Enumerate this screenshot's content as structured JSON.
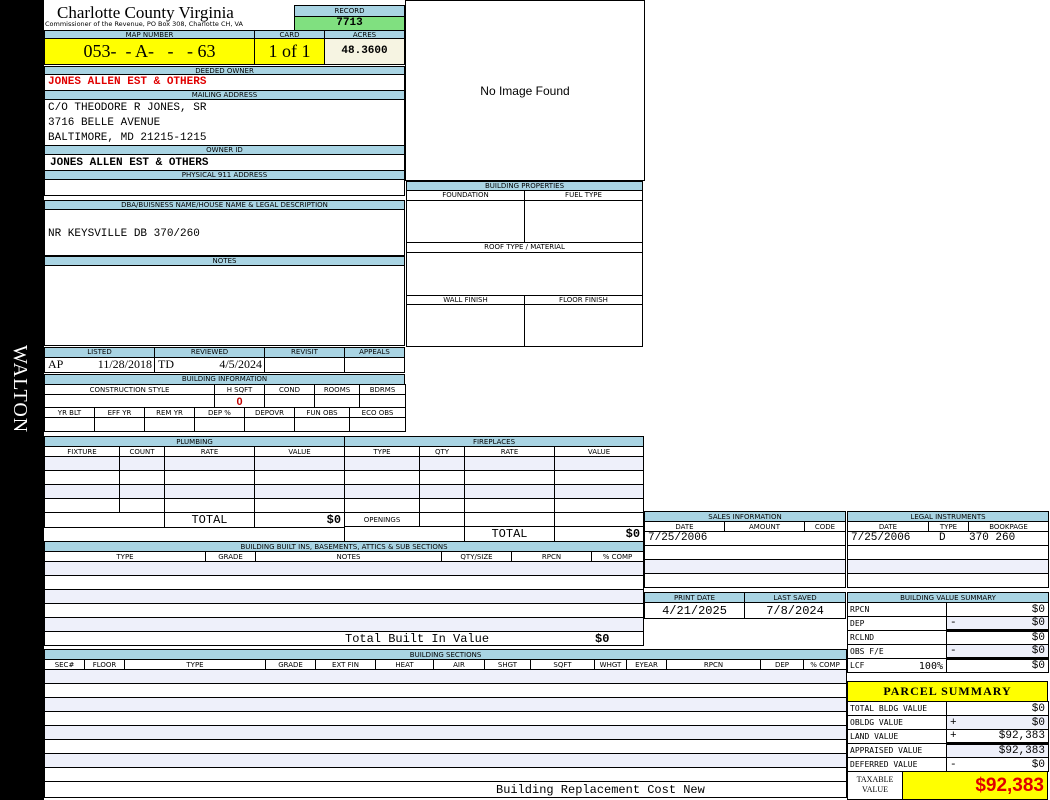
{
  "side_label": "WALTON",
  "header": {
    "title": "Charlotte County Virginia",
    "subtitle": "Commissioner of the Revenue, PO Box 308, Charlotte CH, VA",
    "record_label": "RECORD",
    "record": "7713"
  },
  "parcel": {
    "map_label": "MAP NUMBER",
    "map_number": "053-  - A-   -   - 63",
    "card_label": "CARD",
    "card": "1 of 1",
    "acres_label": "ACRES",
    "acres": "48.3600"
  },
  "owner": {
    "deeded_label": "DEEDED OWNER",
    "deeded": "JONES ALLEN EST & OTHERS",
    "mailing_label": "MAILING ADDRESS",
    "mailing": [
      "C/O THEODORE R JONES, SR",
      "3716 BELLE AVENUE",
      "BALTIMORE, MD 21215-1215"
    ],
    "owner_id_label": "OWNER ID",
    "owner_id": "JONES ALLEN EST & OTHERS",
    "physical_label": "PHYSICAL 911 ADDRESS",
    "physical": ""
  },
  "image": {
    "text": "No Image Found"
  },
  "dba": {
    "label": "DBA/BUISNESS NAME/HOUSE NAME & LEGAL DESCRIPTION",
    "value": "NR KEYSVILLE DB 370/260"
  },
  "notes": {
    "label": "NOTES",
    "value": ""
  },
  "building_properties": {
    "label": "BUILDING PROPERTIES",
    "foundation": "FOUNDATION",
    "fuel": "FUEL TYPE",
    "roof": "ROOF TYPE / MATERIAL",
    "wall": "WALL FINISH",
    "floor": "FLOOR FINISH"
  },
  "review": {
    "listed_label": "LISTED",
    "listed_by": "AP",
    "listed_date": "11/28/2018",
    "reviewed_label": "REVIEWED",
    "reviewed_by": "TD",
    "reviewed_date": "4/5/2024",
    "revisit_label": "REVISIT",
    "appeals_label": "APPEALS"
  },
  "building_info": {
    "label": "BUILDING INFORMATION",
    "row1": [
      "CONSTRUCTION STYLE",
      "H SQFT",
      "COND",
      "ROOMS",
      "BDRMS"
    ],
    "hsqft": "0",
    "row2": [
      "YR BLT",
      "EFF YR",
      "REM YR",
      "DEP %",
      "DEPOVR",
      "FUN OBS",
      "ECO OBS"
    ]
  },
  "plumbing": {
    "label": "PLUMBING",
    "columns": [
      "FIXTURE",
      "COUNT",
      "RATE",
      "VALUE"
    ],
    "total_label": "TOTAL",
    "total": "$0"
  },
  "fireplaces": {
    "label": "FIREPLACES",
    "columns": [
      "TYPE",
      "QTY",
      "RATE",
      "VALUE"
    ],
    "openings_label": "OPENINGS",
    "total_label": "TOTAL",
    "total": "$0"
  },
  "built_ins": {
    "label": "BUILDING BUILT INS, BASEMENTS, ATTICS & SUB SECTIONS",
    "columns": [
      "TYPE",
      "GRADE",
      "NOTES",
      "QTY/SIZE",
      "RPCN",
      "% COMP"
    ],
    "total_label": "Total Built In Value",
    "total": "$0"
  },
  "sections": {
    "label": "BUILDING SECTIONS",
    "columns": [
      "SEC#",
      "FLOOR",
      "TYPE",
      "GRADE",
      "EXT FIN",
      "HEAT",
      "AIR",
      "SHGT",
      "SQFT",
      "WHGT",
      "EYEAR",
      "RPCN",
      "DEP",
      "% COMP"
    ],
    "footer": "Building Replacement Cost New"
  },
  "sales": {
    "label": "SALES INFORMATION",
    "columns": [
      "DATE",
      "AMOUNT",
      "CODE"
    ],
    "rows": [
      [
        "7/25/2006",
        "",
        ""
      ]
    ]
  },
  "legal": {
    "label": "LEGAL INSTRUMENTS",
    "columns": [
      "DATE",
      "TYPE",
      "BOOKPAGE"
    ],
    "rows": [
      [
        "7/25/2006",
        "D",
        "370 260"
      ]
    ]
  },
  "dates": {
    "print_label": "PRINT DATE",
    "print": "4/21/2025",
    "saved_label": "LAST SAVED",
    "saved": "7/8/2024"
  },
  "bvs": {
    "label": "BUILDING VALUE SUMMARY",
    "rows": [
      {
        "label": "RPCN",
        "extra": "",
        "sign": "",
        "value": "$0"
      },
      {
        "label": "DEP",
        "extra": "",
        "sign": "-",
        "value": "$0"
      },
      {
        "label": "RCLND",
        "extra": "",
        "sign": "",
        "value": "$0"
      },
      {
        "label": "OBS F/E",
        "extra": "",
        "sign": "-",
        "value": "$0"
      },
      {
        "label": "LCF",
        "extra": "100%",
        "sign": "",
        "value": "$0"
      }
    ]
  },
  "parcel_summary": {
    "label": "PARCEL SUMMARY",
    "rows": [
      {
        "label": "TOTAL BLDG VALUE",
        "sign": "",
        "value": "$0"
      },
      {
        "label": "OBLDG VALUE",
        "sign": "+",
        "value": "$0"
      },
      {
        "label": "LAND VALUE",
        "sign": "+",
        "value": "$92,383"
      },
      {
        "label": "APPRAISED VALUE",
        "sign": "",
        "value": "$92,383"
      },
      {
        "label": "DEFERRED VALUE",
        "sign": "-",
        "value": "$0"
      }
    ],
    "taxable_label": "TAXABLE VALUE",
    "taxable": "$92,383"
  },
  "colors": {
    "header": "#a9d4e3",
    "highlight": "#ffff00",
    "record": "#80e080",
    "owner_red": "#e00000"
  }
}
